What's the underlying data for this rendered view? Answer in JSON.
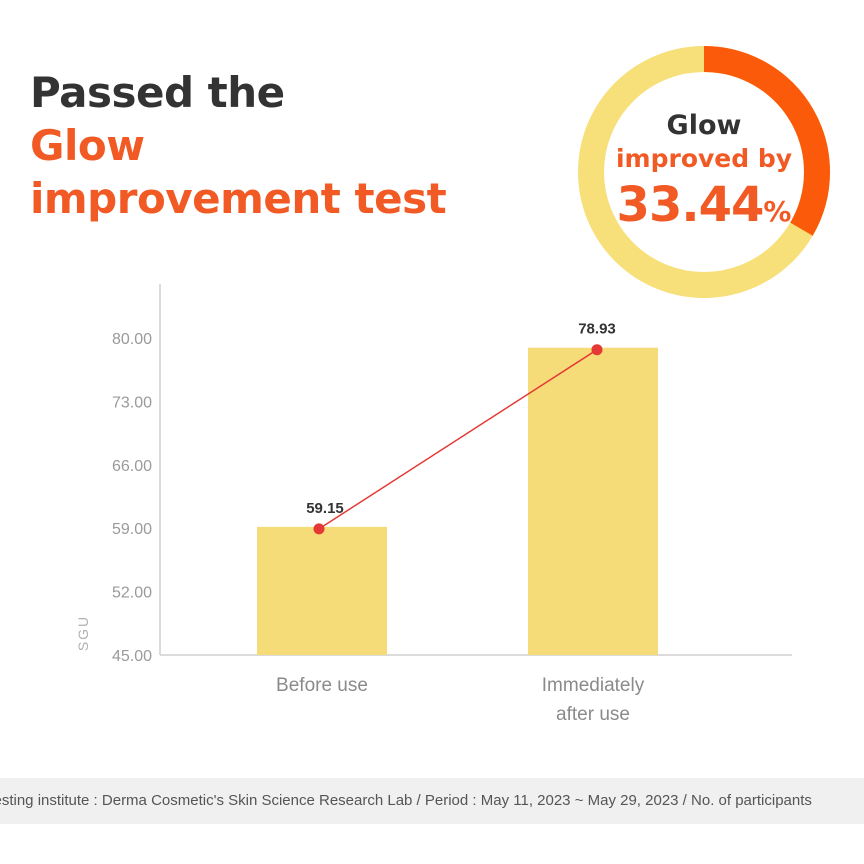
{
  "headline": {
    "line1": "Passed the",
    "line2": "Glow",
    "line3": "improvement test"
  },
  "badge": {
    "line1": "Glow",
    "line2": "improved by",
    "value": "33.44",
    "unit": "%",
    "percent": 33.44
  },
  "colors": {
    "accent": "#f15a24",
    "bar": "#f5dc78",
    "ring": "#f7df7a",
    "line": "#e53935",
    "text_dark": "#333333"
  },
  "chart_data": {
    "type": "bar",
    "categories": [
      "Before use",
      "Immediately after use"
    ],
    "category_lines": [
      [
        "Before use"
      ],
      [
        "Immediately",
        "after use"
      ]
    ],
    "values": [
      59.15,
      78.93
    ],
    "value_labels": [
      "59.15",
      "78.93"
    ],
    "overlay": "line",
    "ylabel": "SGU",
    "ylim": [
      45,
      83
    ],
    "yticks": [
      45,
      52,
      59,
      66,
      73,
      80
    ],
    "ytick_labels": [
      "45.00",
      "52.00",
      "59.00",
      "66.00",
      "73.00",
      "80.00"
    ],
    "grid": false
  },
  "footer": {
    "text": "Testing institute : Derma Cosmetic's Skin Science Research Lab / Period : May 11, 2023 ~ May 29, 2023 / No. of participants"
  }
}
